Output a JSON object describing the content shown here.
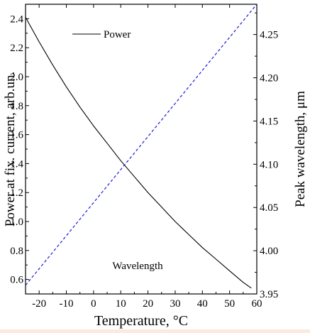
{
  "chart_data": {
    "type": "line",
    "dual_axis": true,
    "x": {
      "label": "Temperature, °C",
      "range": [
        -25,
        60
      ],
      "ticks": [
        -20,
        -10,
        0,
        10,
        20,
        30,
        40,
        50,
        60
      ]
    },
    "y_left": {
      "label": "Power at fix. current, arb.un.",
      "range": [
        0.5,
        2.5
      ],
      "ticks": [
        0.6,
        0.8,
        1.0,
        1.2,
        1.4,
        1.6,
        1.8,
        2.0,
        2.2,
        2.4
      ],
      "tick_labels": [
        "0.6",
        "0.8",
        "1.0",
        "1.2",
        "1.4",
        "1.6",
        "1.8",
        "2.0",
        "2.2",
        "2.4"
      ]
    },
    "y_right": {
      "label": "Peak wavelength, μm",
      "range": [
        3.95,
        4.285
      ],
      "ticks": [
        3.95,
        4.0,
        4.05,
        4.1,
        4.15,
        4.2,
        4.25
      ],
      "tick_labels": [
        "3.95",
        "4.00",
        "4.05",
        "4.10",
        "4.15",
        "4.20",
        "4.25"
      ]
    },
    "series": [
      {
        "name": "Power",
        "axis": "left",
        "style": "solid",
        "color": "#000000",
        "x": [
          -25,
          -20,
          -15,
          -10,
          -5,
          0,
          5,
          10,
          15,
          20,
          25,
          30,
          35,
          40,
          45,
          50,
          55,
          58
        ],
        "y": [
          2.41,
          2.24,
          2.08,
          1.93,
          1.79,
          1.66,
          1.54,
          1.42,
          1.31,
          1.2,
          1.1,
          1.0,
          0.91,
          0.82,
          0.74,
          0.66,
          0.58,
          0.54
        ]
      },
      {
        "name": "Wavelength",
        "axis": "right",
        "style": "dashed",
        "color": "#1a1adb",
        "x": [
          -25,
          60
        ],
        "y": [
          3.96,
          4.285
        ]
      }
    ],
    "legend": {
      "position": "top-left",
      "entries": [
        "Power"
      ]
    },
    "annotations": [
      "Wavelength"
    ],
    "grid": false
  }
}
